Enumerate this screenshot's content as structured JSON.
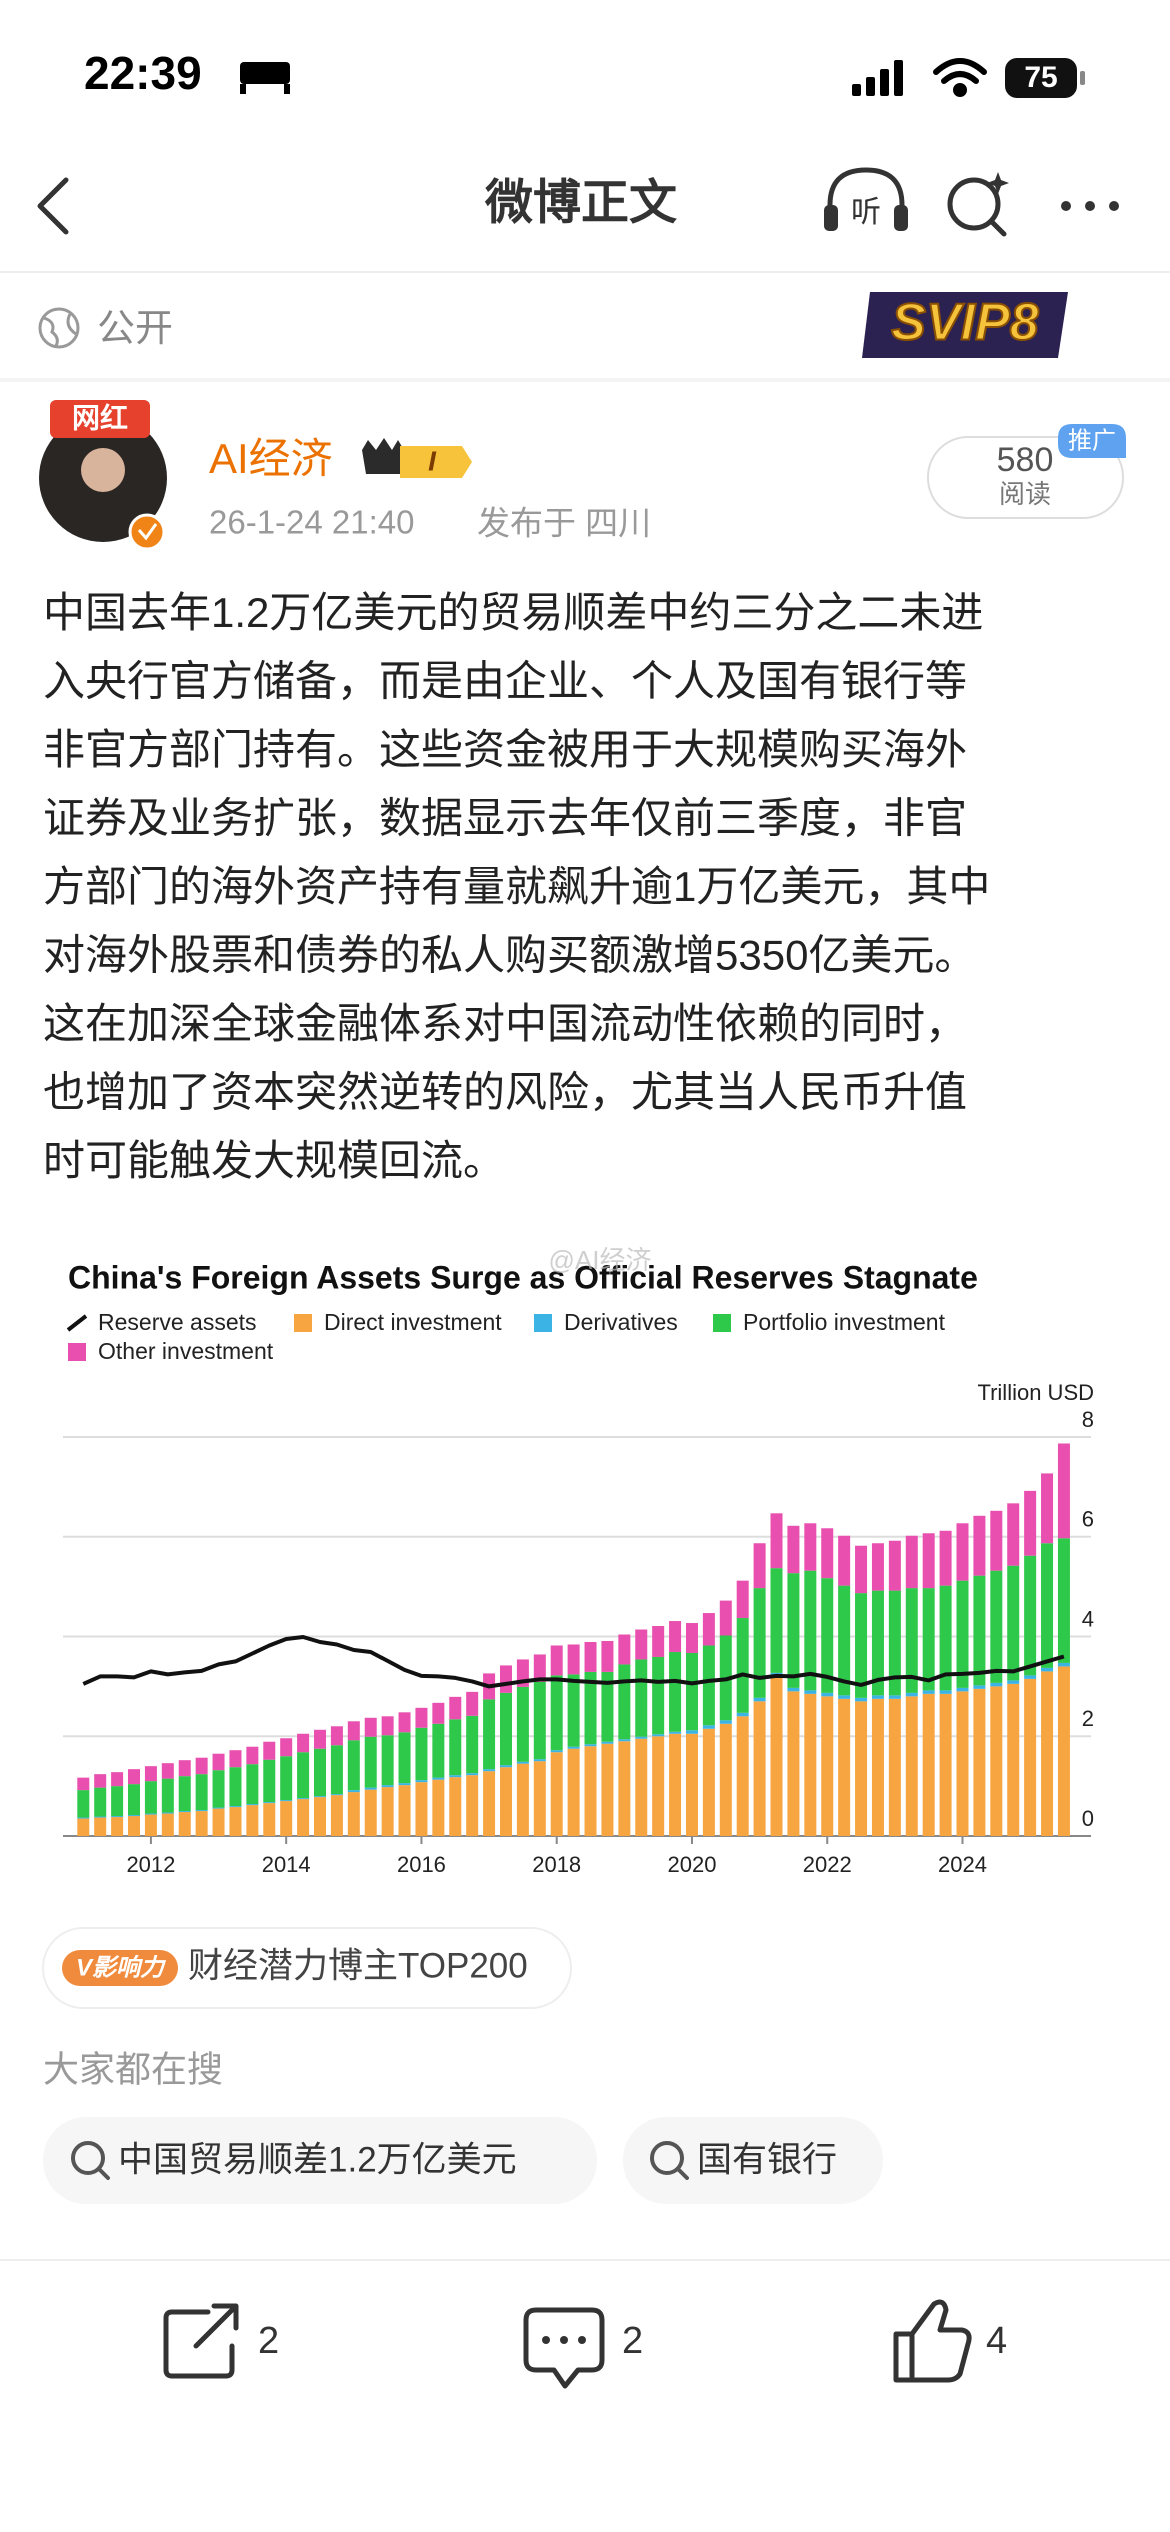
{
  "status_bar": {
    "time": "22:39",
    "battery": "75"
  },
  "nav": {
    "title": "微博正文",
    "listen": "听"
  },
  "visibility": "公开",
  "svip_badge": "SVIP8",
  "author": {
    "avatar_tag": "网红",
    "name": "AI经济",
    "level": "I",
    "time": "26-1-24 21:40",
    "location": "发布于 四川"
  },
  "read_badge": {
    "count": 580,
    "label": "阅读",
    "ad": "推广"
  },
  "body": {
    "lines": [
      "中国去年1.2万亿美元的贸易顺差中约三分之二未进",
      "入央行官方储备，而是由企业、个人及国有银行等",
      "非官方部门持有。这些资金被用于大规模购买海外",
      "证券及业务扩张，数据显示去年仅前三季度，非官",
      "方部门的海外资产持有量就飙升逾1万亿美元，其中",
      "对海外股票和债券的私人购买额激增5350亿美元。",
      "这在加深全球金融体系对中国流动性依赖的同时，",
      "也增加了资本突然逆转的风险，尤其当人民币升值",
      "时可能触发大规模回流。"
    ]
  },
  "chart_data": {
    "type": "bar",
    "stacked": true,
    "title": "China's Foreign Assets Surge as Official Reserves Stagnate",
    "watermark": "@AI经济",
    "y_label": "Trillion USD",
    "y_axis_side": "right",
    "grid": true,
    "x": [
      2011,
      2011.25,
      2011.5,
      2011.75,
      2012,
      2012.25,
      2012.5,
      2012.75,
      2013,
      2013.25,
      2013.5,
      2013.75,
      2014,
      2014.25,
      2014.5,
      2014.75,
      2015,
      2015.25,
      2015.5,
      2015.75,
      2016,
      2016.25,
      2016.5,
      2016.75,
      2017,
      2017.25,
      2017.5,
      2017.75,
      2018,
      2018.25,
      2018.5,
      2018.75,
      2019,
      2019.25,
      2019.5,
      2019.75,
      2020,
      2020.25,
      2020.5,
      2020.75,
      2021,
      2021.25,
      2021.5,
      2021.75,
      2022,
      2022.25,
      2022.5,
      2022.75,
      2023,
      2023.25,
      2023.5,
      2023.75,
      2024,
      2024.25,
      2024.5,
      2024.75,
      2025,
      2025.25,
      2025.5
    ],
    "xlim": [
      2010.7,
      2025.9
    ],
    "xticks": [
      2012,
      2014,
      2016,
      2018,
      2020,
      2022,
      2024
    ],
    "ylim": [
      0,
      8
    ],
    "yticks": [
      0,
      2,
      4,
      6,
      8
    ],
    "series": [
      {
        "name": "Reserve assets",
        "kind": "line",
        "color": "#111111",
        "values": [
          3.05,
          3.2,
          3.2,
          3.18,
          3.3,
          3.24,
          3.28,
          3.31,
          3.44,
          3.5,
          3.66,
          3.82,
          3.95,
          3.99,
          3.89,
          3.84,
          3.73,
          3.69,
          3.51,
          3.33,
          3.21,
          3.2,
          3.17,
          3.1,
          3.0,
          3.05,
          3.1,
          3.14,
          3.14,
          3.11,
          3.09,
          3.07,
          3.1,
          3.12,
          3.09,
          3.11,
          3.06,
          3.11,
          3.14,
          3.24,
          3.17,
          3.21,
          3.2,
          3.25,
          3.19,
          3.1,
          3.03,
          3.13,
          3.18,
          3.19,
          3.12,
          3.24,
          3.25,
          3.27,
          3.31,
          3.3,
          3.4,
          3.5,
          3.6
        ]
      },
      {
        "name": "Direct investment",
        "kind": "bar",
        "color": "#f7a541",
        "values": [
          0.35,
          0.37,
          0.38,
          0.4,
          0.43,
          0.45,
          0.48,
          0.5,
          0.55,
          0.58,
          0.62,
          0.66,
          0.7,
          0.74,
          0.78,
          0.82,
          0.88,
          0.93,
          0.98,
          1.02,
          1.08,
          1.13,
          1.18,
          1.22,
          1.3,
          1.38,
          1.45,
          1.5,
          1.68,
          1.75,
          1.8,
          1.85,
          1.9,
          1.95,
          2.0,
          2.05,
          2.05,
          2.15,
          2.25,
          2.4,
          2.7,
          3.2,
          2.9,
          2.85,
          2.8,
          2.75,
          2.7,
          2.75,
          2.75,
          2.8,
          2.85,
          2.85,
          2.9,
          2.95,
          3.0,
          3.05,
          3.15,
          3.3,
          3.4
        ]
      },
      {
        "name": "Derivatives",
        "kind": "bar",
        "color": "#3bb4e5",
        "values": [
          0.02,
          0.02,
          0.02,
          0.02,
          0.02,
          0.02,
          0.02,
          0.02,
          0.02,
          0.02,
          0.02,
          0.02,
          0.02,
          0.02,
          0.02,
          0.02,
          0.04,
          0.04,
          0.04,
          0.04,
          0.04,
          0.04,
          0.04,
          0.04,
          0.04,
          0.04,
          0.04,
          0.04,
          0.04,
          0.04,
          0.04,
          0.04,
          0.04,
          0.04,
          0.04,
          0.04,
          0.07,
          0.07,
          0.07,
          0.07,
          0.07,
          0.07,
          0.07,
          0.07,
          0.07,
          0.07,
          0.07,
          0.07,
          0.07,
          0.07,
          0.07,
          0.07,
          0.07,
          0.07,
          0.07,
          0.07,
          0.07,
          0.07,
          0.07
        ]
      },
      {
        "name": "Portfolio investment",
        "kind": "bar",
        "color": "#2ec84a",
        "values": [
          0.55,
          0.58,
          0.6,
          0.62,
          0.65,
          0.68,
          0.7,
          0.72,
          0.75,
          0.78,
          0.8,
          0.85,
          0.88,
          0.92,
          0.95,
          0.98,
          1.0,
          1.02,
          1.0,
          1.02,
          1.05,
          1.08,
          1.12,
          1.15,
          1.4,
          1.45,
          1.5,
          1.55,
          1.5,
          1.45,
          1.45,
          1.4,
          1.5,
          1.55,
          1.55,
          1.6,
          1.55,
          1.6,
          1.7,
          1.9,
          2.2,
          2.1,
          2.3,
          2.4,
          2.3,
          2.2,
          2.1,
          2.1,
          2.1,
          2.1,
          2.05,
          2.1,
          2.15,
          2.2,
          2.25,
          2.3,
          2.4,
          2.5,
          2.5
        ]
      },
      {
        "name": "Other investment",
        "kind": "bar",
        "color": "#e84fae",
        "values": [
          0.25,
          0.27,
          0.28,
          0.3,
          0.3,
          0.31,
          0.32,
          0.33,
          0.33,
          0.34,
          0.35,
          0.36,
          0.36,
          0.37,
          0.38,
          0.38,
          0.38,
          0.38,
          0.38,
          0.4,
          0.4,
          0.42,
          0.45,
          0.48,
          0.52,
          0.55,
          0.55,
          0.55,
          0.6,
          0.6,
          0.6,
          0.62,
          0.6,
          0.6,
          0.62,
          0.62,
          0.6,
          0.65,
          0.7,
          0.75,
          0.9,
          1.1,
          0.95,
          0.95,
          1.0,
          1.0,
          0.95,
          0.95,
          1.0,
          1.05,
          1.1,
          1.1,
          1.15,
          1.2,
          1.2,
          1.25,
          1.3,
          1.4,
          1.9
        ]
      }
    ]
  },
  "influence": {
    "tag": "V影响力",
    "text": "财经潜力博主TOP200"
  },
  "search": {
    "title": "大家都在搜",
    "items": [
      "中国贸易顺差1.2万亿美元",
      "国有银行"
    ]
  },
  "actions": {
    "share": 2,
    "comment": 2,
    "like": 4
  }
}
